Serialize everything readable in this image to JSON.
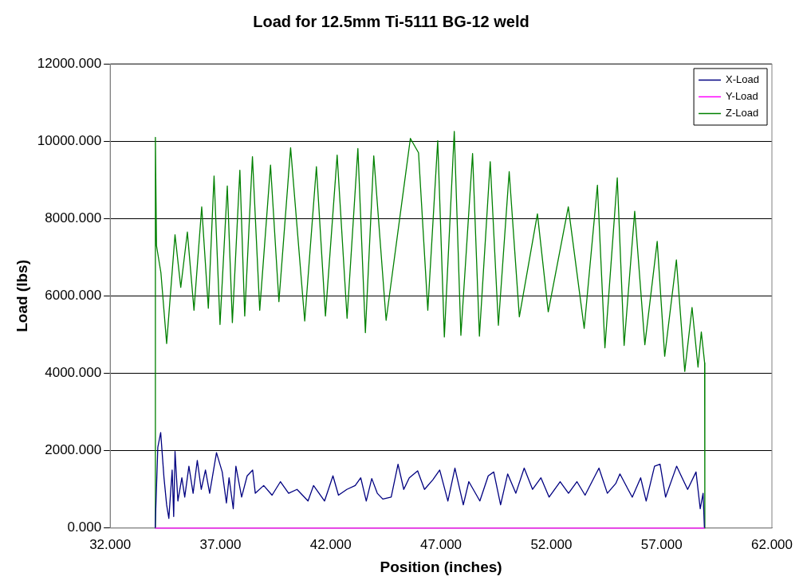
{
  "chart_data": {
    "type": "line",
    "title": "Load for 12.5mm Ti-5111 BG-12 weld",
    "xlabel": "Position (inches)",
    "ylabel": "Load (lbs)",
    "xlim": [
      32,
      62
    ],
    "xticks": [
      {
        "value": 32,
        "label": "32.000"
      },
      {
        "value": 37,
        "label": "37.000"
      },
      {
        "value": 42,
        "label": "42.000"
      },
      {
        "value": 47,
        "label": "47.000"
      },
      {
        "value": 52,
        "label": "52.000"
      },
      {
        "value": 57,
        "label": "57.000"
      },
      {
        "value": 62,
        "label": "62.000"
      }
    ],
    "ylim": [
      0,
      12000
    ],
    "yticks": [
      {
        "value": 0,
        "label": "0.000"
      },
      {
        "value": 2000,
        "label": "2000.000"
      },
      {
        "value": 4000,
        "label": "4000.000"
      },
      {
        "value": 6000,
        "label": "6000.000"
      },
      {
        "value": 8000,
        "label": "8000.000"
      },
      {
        "value": 10000,
        "label": "10000.000"
      },
      {
        "value": 12000,
        "label": "12000.000"
      }
    ],
    "grid": "y",
    "legend": "top right",
    "marker": "none",
    "line_style": "solid",
    "series": [
      {
        "name": "X-Load",
        "color": "#000080",
        "x": [
          34.04,
          34.16,
          34.29,
          34.44,
          34.56,
          34.66,
          34.81,
          34.88,
          34.94,
          35.07,
          35.25,
          35.38,
          35.57,
          35.76,
          35.95,
          36.13,
          36.32,
          36.51,
          36.82,
          37.08,
          37.27,
          37.39,
          37.58,
          37.7,
          37.96,
          38.21,
          38.46,
          38.58,
          38.96,
          39.34,
          39.72,
          40.09,
          40.47,
          40.97,
          41.22,
          41.72,
          42.1,
          42.35,
          42.73,
          43.11,
          43.36,
          43.61,
          43.86,
          44.11,
          44.36,
          44.74,
          45.05,
          45.31,
          45.56,
          45.94,
          46.25,
          46.63,
          46.94,
          47.31,
          47.63,
          48.01,
          48.26,
          48.76,
          49.14,
          49.39,
          49.7,
          50.02,
          50.39,
          50.77,
          51.15,
          51.53,
          51.9,
          52.4,
          52.78,
          53.16,
          53.53,
          54.16,
          54.54,
          54.92,
          55.11,
          55.48,
          55.67,
          56.05,
          56.3,
          56.68,
          56.93,
          57.18,
          57.68,
          57.93,
          58.18,
          58.56,
          58.75,
          58.88,
          58.94
        ],
        "values": [
          0,
          2090,
          2470,
          1300,
          600,
          250,
          1500,
          300,
          1980,
          700,
          1300,
          800,
          1600,
          900,
          1750,
          1000,
          1500,
          900,
          1950,
          1450,
          650,
          1300,
          500,
          1600,
          800,
          1350,
          1500,
          900,
          1100,
          850,
          1200,
          900,
          1000,
          700,
          1100,
          700,
          1350,
          850,
          1000,
          1100,
          1300,
          700,
          1280,
          900,
          750,
          800,
          1650,
          1000,
          1300,
          1480,
          1000,
          1250,
          1500,
          700,
          1550,
          600,
          1200,
          700,
          1350,
          1450,
          600,
          1400,
          900,
          1550,
          1000,
          1300,
          800,
          1200,
          900,
          1200,
          850,
          1550,
          900,
          1150,
          1400,
          1000,
          800,
          1300,
          700,
          1600,
          1650,
          800,
          1600,
          1300,
          1000,
          1450,
          500,
          900,
          0
        ]
      },
      {
        "name": "Y-Load",
        "color": "#ff00ff",
        "x": [
          34.04,
          58.95
        ],
        "values": [
          0,
          0
        ]
      },
      {
        "name": "Z-Load",
        "color": "#008000",
        "x": [
          34.04,
          34.05,
          34.1,
          34.3,
          34.56,
          34.94,
          35.2,
          35.5,
          35.8,
          36.15,
          36.45,
          36.71,
          36.98,
          37.31,
          37.54,
          37.88,
          38.1,
          38.45,
          38.78,
          39.27,
          39.65,
          40.18,
          40.82,
          41.35,
          41.76,
          42.29,
          42.74,
          43.23,
          43.57,
          43.95,
          44.51,
          45.61,
          45.98,
          46.4,
          46.85,
          47.15,
          47.6,
          47.9,
          48.43,
          48.74,
          49.23,
          49.6,
          50.09,
          50.55,
          51.37,
          51.86,
          52.77,
          53.49,
          54.09,
          54.43,
          54.99,
          55.3,
          55.78,
          56.24,
          56.8,
          57.14,
          57.67,
          58.05,
          58.38,
          58.65,
          58.8,
          58.95,
          58.96
        ],
        "values": [
          0,
          10100,
          7300,
          6600,
          4770,
          7580,
          6220,
          7650,
          5630,
          8300,
          5680,
          9100,
          5260,
          8840,
          5310,
          9250,
          5480,
          9600,
          5630,
          9380,
          5850,
          9830,
          5350,
          9340,
          5480,
          9640,
          5420,
          9810,
          5050,
          9620,
          5370,
          10070,
          9700,
          5630,
          10010,
          4940,
          10250,
          4980,
          9680,
          4960,
          9470,
          5240,
          9210,
          5460,
          8120,
          5590,
          8300,
          5160,
          8860,
          4660,
          9050,
          4720,
          8190,
          4740,
          7410,
          4440,
          6930,
          4050,
          5700,
          4160,
          5070,
          4270,
          0
        ]
      }
    ]
  }
}
